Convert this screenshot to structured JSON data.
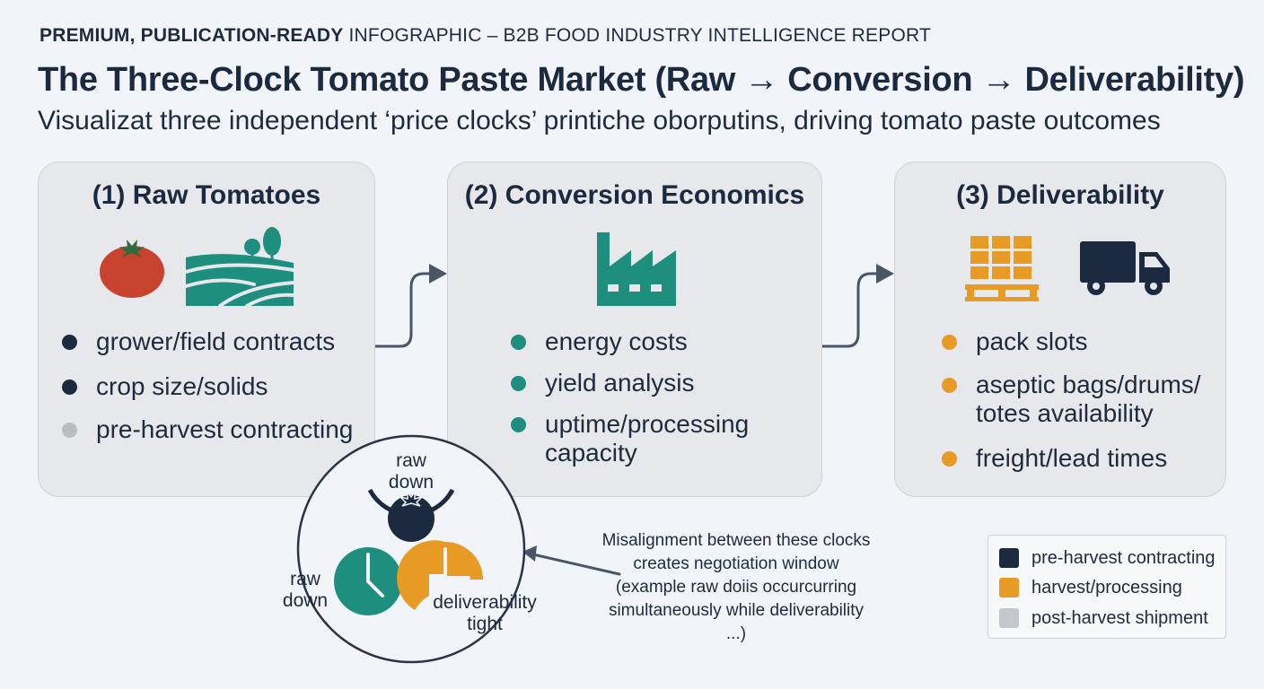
{
  "header": {
    "kicker_bold": "PREMIUM, PUBLICATION-READY",
    "kicker_rest": " INFOGRAPHIC – B2B FOOD INDUSTRY INTELLIGENCE REPORT",
    "title": "The Three-Clock Tomato Paste Market (Raw → Conversion → Deliverability)",
    "subtitle": "Visualizat three independent ‘price clocks’ printiche oborputins, driving tomato paste outcomes"
  },
  "cards": [
    {
      "title": "(1) Raw Tomatoes",
      "icons": [
        "tomato-icon",
        "farm-field-icon"
      ],
      "bullets": [
        {
          "text": "grower/field contracts",
          "color": "#1c2a40"
        },
        {
          "text": "crop size/solids",
          "color": "#1c2a40"
        },
        {
          "text": "pre-harvest contracting",
          "color": "#b9bcc1"
        }
      ]
    },
    {
      "title": "(2) Conversion Economics",
      "icons": [
        "factory-icon"
      ],
      "bullets": [
        {
          "text": "energy costs",
          "color": "#1e8e7e"
        },
        {
          "text": "yield analysis",
          "color": "#1e8e7e"
        },
        {
          "text": "uptime/processing capacity",
          "color": "#1e8e7e"
        }
      ]
    },
    {
      "title": "(3) Deliverability",
      "icons": [
        "pallet-boxes-icon",
        "truck-icon"
      ],
      "bullets": [
        {
          "text": "pack slots",
          "color": "#e79b25"
        },
        {
          "text": "aseptic bags/drums/ totes availability",
          "color": "#e79b25"
        },
        {
          "text": "freight/lead times",
          "color": "#e79b25"
        }
      ]
    }
  ],
  "clocks": {
    "top_label": "raw down",
    "left_label": "raw down",
    "right_label": "deliverability tight"
  },
  "note": "Misalignment between these clocks creates negotiation window (example raw doiis occurcurring simultaneously while deliverability ...)",
  "legend": [
    {
      "label": "pre-harvest contracting",
      "color": "#1c2a40"
    },
    {
      "label": "harvest/processing",
      "color": "#e79b25"
    },
    {
      "label": "post-harvest shipment",
      "color": "#c4c7cc"
    }
  ],
  "colors": {
    "navy": "#1c2a40",
    "teal": "#1e8e7e",
    "orange": "#e79b25",
    "tomato_red": "#c8432e",
    "card_bg": "#e6e8ec"
  }
}
